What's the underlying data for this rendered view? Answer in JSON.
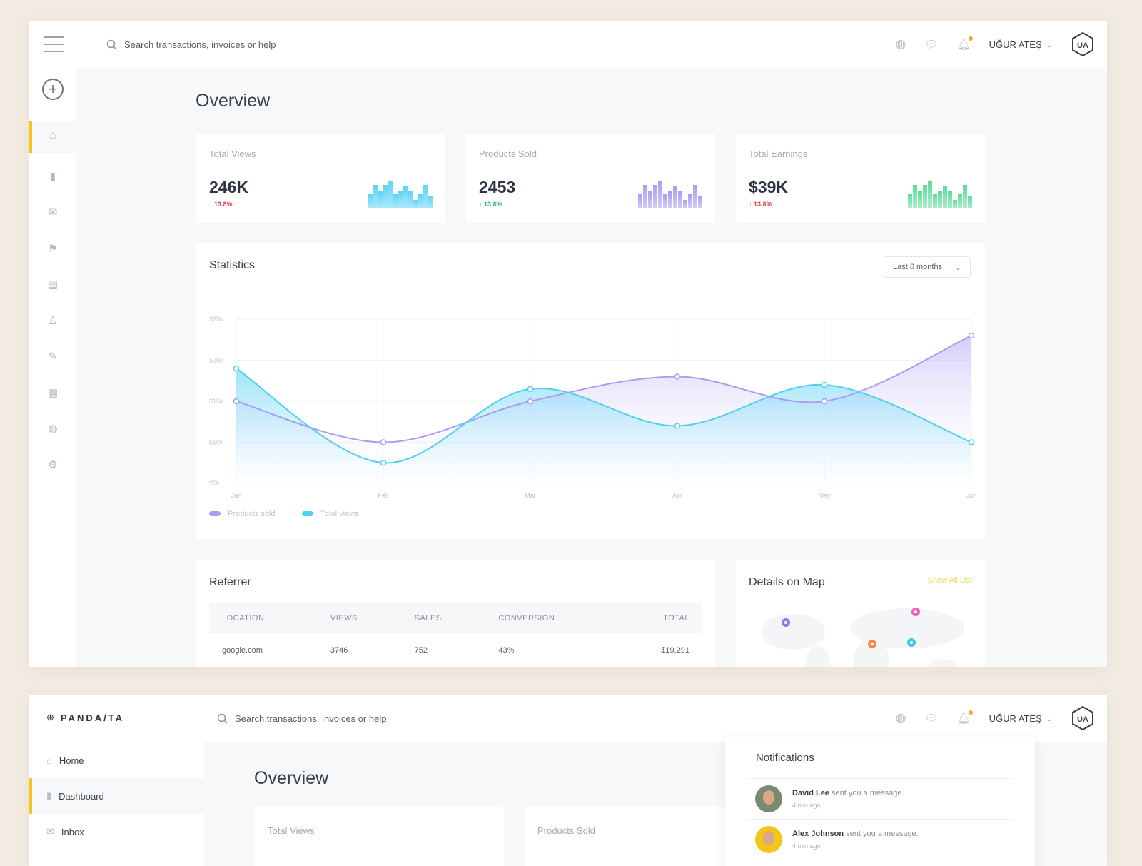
{
  "header": {
    "search_placeholder": "Search transactions, invoices or help",
    "user_name": "UĞUR ATEŞ",
    "avatar_initials": "UA"
  },
  "sidebar_icons": [
    "home-icon",
    "bar-chart-icon",
    "mail-icon",
    "flag-icon",
    "document-icon",
    "user-icon",
    "chat-icon",
    "calendar-icon",
    "globe-icon",
    "gear-icon"
  ],
  "page_title": "Overview",
  "stats": [
    {
      "label": "Total Views",
      "value": "246K",
      "change": "13.8%",
      "direction": "down",
      "color": "#5fd3f3",
      "spark": [
        0.5,
        0.85,
        0.6,
        0.85,
        1,
        0.5,
        0.6,
        0.8,
        0.6,
        0.3,
        0.5,
        0.85,
        0.45
      ]
    },
    {
      "label": "Products Sold",
      "value": "2453",
      "change": "13.8%",
      "direction": "up",
      "color": "#a99cf4",
      "spark": [
        0.5,
        0.85,
        0.6,
        0.85,
        1,
        0.5,
        0.6,
        0.8,
        0.6,
        0.3,
        0.5,
        0.85,
        0.45
      ]
    },
    {
      "label": "Total Earnings",
      "value": "$39K",
      "change": "13.8%",
      "direction": "down",
      "color": "#5ddc9b",
      "spark": [
        0.5,
        0.85,
        0.6,
        0.85,
        1,
        0.5,
        0.6,
        0.8,
        0.6,
        0.3,
        0.5,
        0.85,
        0.45
      ]
    }
  ],
  "colors": {
    "down": "#e8414a",
    "up": "#2fb87a",
    "accent": "#f5c518",
    "link": "#e6dc5a"
  },
  "statistics": {
    "title": "Statistics",
    "range": "Last 6 months"
  },
  "chart_data": {
    "type": "area",
    "categories": [
      "Jan",
      "Feb",
      "Mar",
      "Apr",
      "May",
      "Jun"
    ],
    "ylim": [
      5000,
      25000
    ],
    "yticks": [
      "$5k",
      "$10k",
      "$15k",
      "$20k",
      "$25k"
    ],
    "yticks_values": [
      5000,
      10000,
      15000,
      20000,
      25000
    ],
    "grid": true,
    "legend": "bottom-left",
    "series": [
      {
        "name": "Products sold",
        "color": "#a99cf4",
        "values": [
          15000,
          10000,
          15000,
          18000,
          15000,
          23000
        ]
      },
      {
        "name": "Total views",
        "color": "#4fd0f0",
        "values": [
          19000,
          7500,
          16500,
          12000,
          17000,
          10000
        ]
      }
    ]
  },
  "referrer": {
    "title": "Referrer",
    "columns": [
      "LOCATION",
      "VIEWS",
      "SALES",
      "CONVERSION",
      "TOTAL"
    ],
    "rows": [
      [
        "google.com",
        "3746",
        "752",
        "43%",
        "$19,291"
      ]
    ]
  },
  "map": {
    "title": "Details on Map",
    "link": "Show All List",
    "pins": [
      "#8c7cf0",
      "#f062b8",
      "#f58a4a",
      "#3cc6ee"
    ]
  },
  "second": {
    "brand": "PANDA/TA",
    "nav": [
      {
        "label": "Home",
        "icon": "home-icon"
      },
      {
        "label": "Dashboard",
        "icon": "bar-chart-icon",
        "active": true
      },
      {
        "label": "Inbox",
        "icon": "mail-icon"
      }
    ],
    "page_title": "Overview",
    "cards": [
      "Total Views",
      "Products Sold"
    ],
    "notifications": {
      "title": "Notifications",
      "items": [
        {
          "name": "David Lee",
          "text": " sent you a message.",
          "time": "4 min ago"
        },
        {
          "name": "Alex Johnson",
          "text": " sent you a message.",
          "time": "4 min ago"
        }
      ]
    }
  }
}
